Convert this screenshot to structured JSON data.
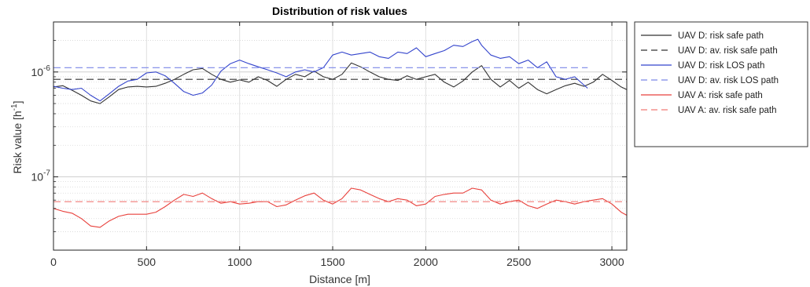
{
  "chart_data": {
    "type": "line",
    "title": "Distribution of risk values",
    "xlabel": "Distance [m]",
    "ylabel_main": "Risk value [h",
    "ylabel_sup": "-1",
    "ylabel_close": "]",
    "y_scale": "log",
    "xlim": [
      0,
      3080
    ],
    "ylim": [
      2e-08,
      3e-06
    ],
    "grid": true,
    "legend_position": "outside-top-right",
    "x_ticks": [
      {
        "value": 0,
        "label": "0"
      },
      {
        "value": 500,
        "label": "500"
      },
      {
        "value": 1000,
        "label": "1000"
      },
      {
        "value": 1500,
        "label": "1500"
      },
      {
        "value": 2000,
        "label": "2000"
      },
      {
        "value": 2500,
        "label": "2500"
      },
      {
        "value": 3000,
        "label": "3000"
      }
    ],
    "y_ticks": [
      {
        "value": 1e-07,
        "base": "10",
        "exp": "-7"
      },
      {
        "value": 1e-06,
        "base": "10",
        "exp": "-6"
      }
    ],
    "series": [
      {
        "name": "UAV D: risk safe path",
        "color": "#333333",
        "dash": "solid",
        "x": [
          0,
          50,
          100,
          150,
          200,
          250,
          300,
          350,
          400,
          450,
          500,
          550,
          600,
          650,
          700,
          750,
          800,
          850,
          900,
          950,
          1000,
          1050,
          1100,
          1150,
          1200,
          1250,
          1300,
          1350,
          1400,
          1450,
          1500,
          1550,
          1600,
          1650,
          1700,
          1750,
          1800,
          1850,
          1900,
          1950,
          2000,
          2050,
          2100,
          2150,
          2200,
          2250,
          2300,
          2350,
          2400,
          2450,
          2500,
          2550,
          2600,
          2650,
          2700,
          2750,
          2800,
          2850,
          2900,
          2950,
          3000,
          3050,
          3080
        ],
        "y": [
          7.2e-07,
          7.4e-07,
          6.7e-07,
          6e-07,
          5.3e-07,
          5e-07,
          5.8e-07,
          6.8e-07,
          7.2e-07,
          7.3e-07,
          7.2e-07,
          7.3e-07,
          7.8e-07,
          8.5e-07,
          9.5e-07,
          1.05e-06,
          1.08e-06,
          9.5e-07,
          8.5e-07,
          8e-07,
          8.4e-07,
          8e-07,
          9e-07,
          8.3e-07,
          7.3e-07,
          8.5e-07,
          9.5e-07,
          9e-07,
          1.02e-06,
          9e-07,
          8.5e-07,
          9.5e-07,
          1.22e-06,
          1.12e-06,
          1e-06,
          9e-07,
          8.5e-07,
          8.3e-07,
          9.2e-07,
          8.5e-07,
          9e-07,
          9.5e-07,
          8e-07,
          7.2e-07,
          8.2e-07,
          1e-06,
          1.15e-06,
          8.5e-07,
          7.2e-07,
          8.3e-07,
          7e-07,
          8e-07,
          6.8e-07,
          6.2e-07,
          6.8e-07,
          7.4e-07,
          7.8e-07,
          7.3e-07,
          8e-07,
          9.5e-07,
          8.3e-07,
          7.2e-07,
          6.8e-07
        ]
      },
      {
        "name": "UAV D: av. risk safe path",
        "color": "#333333",
        "dash": "dashed",
        "x": [
          0,
          3080
        ],
        "y": [
          8.5e-07,
          8.5e-07
        ]
      },
      {
        "name": "UAV D: risk LOS path",
        "color": "#3344cc",
        "dash": "solid",
        "x": [
          0,
          50,
          100,
          150,
          200,
          250,
          300,
          350,
          400,
          450,
          500,
          550,
          600,
          650,
          700,
          750,
          800,
          850,
          900,
          950,
          1000,
          1050,
          1100,
          1150,
          1200,
          1250,
          1300,
          1350,
          1400,
          1450,
          1500,
          1550,
          1600,
          1650,
          1700,
          1750,
          1800,
          1850,
          1900,
          1950,
          2000,
          2050,
          2100,
          2150,
          2200,
          2250,
          2280,
          2300,
          2350,
          2400,
          2450,
          2500,
          2550,
          2600,
          2650,
          2700,
          2750,
          2800,
          2850,
          2870
        ],
        "y": [
          7.3e-07,
          7e-07,
          6.8e-07,
          7e-07,
          6e-07,
          5.3e-07,
          6.2e-07,
          7.3e-07,
          8.2e-07,
          8.5e-07,
          9.8e-07,
          1e-06,
          9.2e-07,
          7.8e-07,
          6.5e-07,
          6e-07,
          6.3e-07,
          7.5e-07,
          1.02e-06,
          1.2e-06,
          1.3e-06,
          1.2e-06,
          1.12e-06,
          1.05e-06,
          9.8e-07,
          9e-07,
          1e-06,
          1.05e-06,
          1e-06,
          1.1e-06,
          1.45e-06,
          1.55e-06,
          1.45e-06,
          1.5e-06,
          1.55e-06,
          1.4e-06,
          1.35e-06,
          1.55e-06,
          1.5e-06,
          1.7e-06,
          1.4e-06,
          1.5e-06,
          1.6e-06,
          1.8e-06,
          1.75e-06,
          1.95e-06,
          2.05e-06,
          1.8e-06,
          1.45e-06,
          1.35e-06,
          1.4e-06,
          1.2e-06,
          1.3e-06,
          1.1e-06,
          1.25e-06,
          9e-07,
          8.5e-07,
          9e-07,
          7.5e-07,
          7e-07
        ]
      },
      {
        "name": "UAV D: av. risk LOS path",
        "color": "#7a86e8",
        "dash": "dashed",
        "x": [
          0,
          2870
        ],
        "y": [
          1.1e-06,
          1.1e-06
        ]
      },
      {
        "name": "UAV A: risk safe path",
        "color": "#e8413c",
        "dash": "solid",
        "x": [
          0,
          50,
          100,
          150,
          200,
          250,
          300,
          350,
          400,
          450,
          500,
          550,
          600,
          650,
          700,
          750,
          800,
          850,
          900,
          950,
          1000,
          1050,
          1100,
          1150,
          1200,
          1250,
          1300,
          1350,
          1400,
          1450,
          1500,
          1550,
          1600,
          1650,
          1700,
          1750,
          1800,
          1850,
          1900,
          1950,
          2000,
          2050,
          2100,
          2150,
          2200,
          2250,
          2300,
          2350,
          2400,
          2450,
          2500,
          2550,
          2600,
          2650,
          2700,
          2750,
          2800,
          2850,
          2900,
          2950,
          3000,
          3050,
          3080
        ],
        "y": [
          5e-08,
          4.7e-08,
          4.5e-08,
          4e-08,
          3.4e-08,
          3.3e-08,
          3.8e-08,
          4.2e-08,
          4.4e-08,
          4.4e-08,
          4.4e-08,
          4.6e-08,
          5.2e-08,
          6e-08,
          6.8e-08,
          6.5e-08,
          7e-08,
          6.2e-08,
          5.6e-08,
          5.8e-08,
          5.5e-08,
          5.6e-08,
          5.8e-08,
          5.8e-08,
          5.2e-08,
          5.4e-08,
          6e-08,
          6.6e-08,
          7e-08,
          6e-08,
          5.5e-08,
          6.2e-08,
          7.8e-08,
          7.5e-08,
          6.8e-08,
          6.2e-08,
          5.8e-08,
          6.2e-08,
          6e-08,
          5.3e-08,
          5.5e-08,
          6.5e-08,
          6.8e-08,
          7e-08,
          7e-08,
          7.8e-08,
          7.5e-08,
          6e-08,
          5.5e-08,
          5.8e-08,
          6e-08,
          5.3e-08,
          5e-08,
          5.5e-08,
          6e-08,
          5.8e-08,
          5.5e-08,
          5.8e-08,
          6e-08,
          6.2e-08,
          5.5e-08,
          4.6e-08,
          4.3e-08
        ]
      },
      {
        "name": "UAV A: av. risk safe path",
        "color": "#f07a76",
        "dash": "dashed",
        "x": [
          0,
          3080
        ],
        "y": [
          5.8e-08,
          5.8e-08
        ]
      }
    ]
  }
}
